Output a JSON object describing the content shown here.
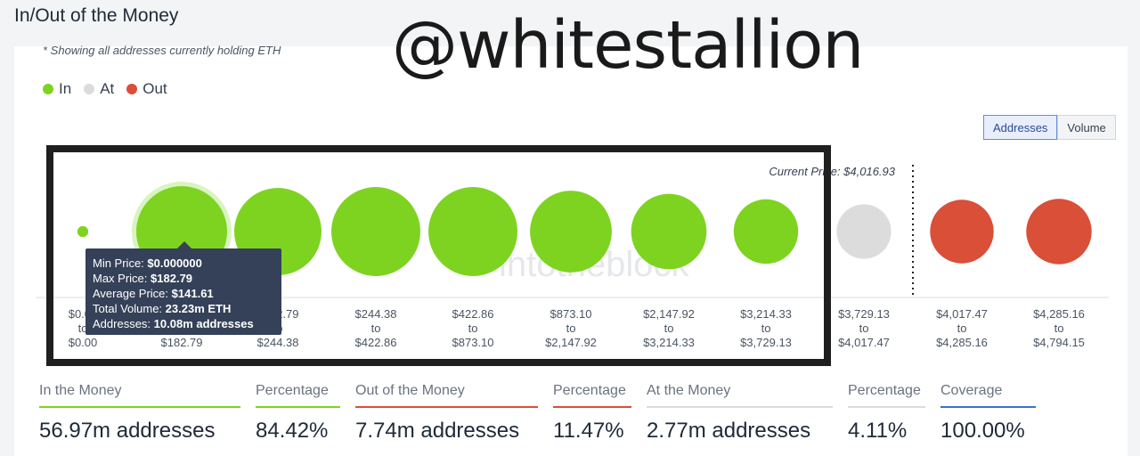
{
  "page": {
    "title": "In/Out of the Money",
    "note": "* Showing all addresses currently holding ETH",
    "watermark_handle": "@whitestallion",
    "watermark_brand": "intotheblock"
  },
  "legend": [
    {
      "label": "In",
      "color": "#7ed321"
    },
    {
      "label": "At",
      "color": "#dcdcdc"
    },
    {
      "label": "Out",
      "color": "#d94f38"
    }
  ],
  "toggle": {
    "addresses_label": "Addresses",
    "volume_label": "Volume"
  },
  "chart_data": {
    "type": "bubble",
    "current_price_label": "Current Price: $4,016.93",
    "current_price": 4016.93,
    "bubbles": [
      {
        "from": "$0.00",
        "to": "$0.00",
        "status": "in",
        "size": 0.12
      },
      {
        "from": "$0.00",
        "to": "$182.79",
        "status": "in",
        "size": 1.0
      },
      {
        "from": "$182.79",
        "to": "$244.38",
        "status": "in",
        "size": 0.96
      },
      {
        "from": "$244.38",
        "to": "$422.86",
        "status": "in",
        "size": 0.98
      },
      {
        "from": "$422.86",
        "to": "$873.10",
        "status": "in",
        "size": 0.98
      },
      {
        "from": "$873.10",
        "to": "$2,147.92",
        "status": "in",
        "size": 0.9
      },
      {
        "from": "$2,147.92",
        "to": "$3,214.33",
        "status": "in",
        "size": 0.83
      },
      {
        "from": "$3,214.33",
        "to": "$3,729.13",
        "status": "in",
        "size": 0.71
      },
      {
        "from": "$3,729.13",
        "to": "$4,017.47",
        "status": "at",
        "size": 0.6
      },
      {
        "from": "$4,017.47",
        "to": "$4,285.16",
        "status": "out",
        "size": 0.7
      },
      {
        "from": "$4,285.16",
        "to": "$4,794.15",
        "status": "out",
        "size": 0.72
      }
    ],
    "range_connector": "to",
    "colors": {
      "in": "#7ed321",
      "at": "#dcdcdc",
      "out": "#d94f38"
    }
  },
  "tooltip": {
    "min_price_label": "Min Price:",
    "min_price": "$0.000000",
    "max_price_label": "Max Price:",
    "max_price": "$182.79",
    "avg_price_label": "Average Price:",
    "avg_price": "$141.61",
    "volume_label": "Total Volume:",
    "volume": "23.23m ETH",
    "addresses_label": "Addresses:",
    "addresses": "10.08m addresses"
  },
  "stats": [
    {
      "label": "In the Money",
      "value": "56.97m addresses",
      "color": "#7ed321"
    },
    {
      "label": "Percentage",
      "value": "84.42%",
      "color": "#7ed321"
    },
    {
      "label": "Out of the Money",
      "value": "7.74m addresses",
      "color": "#d94f38"
    },
    {
      "label": "Percentage",
      "value": "11.47%",
      "color": "#d94f38"
    },
    {
      "label": "At the Money",
      "value": "2.77m addresses",
      "color": "#dcdcdc"
    },
    {
      "label": "Percentage",
      "value": "4.11%",
      "color": "#dcdcdc"
    },
    {
      "label": "Coverage",
      "value": "100.00%",
      "color": "#3b6fd8"
    }
  ]
}
